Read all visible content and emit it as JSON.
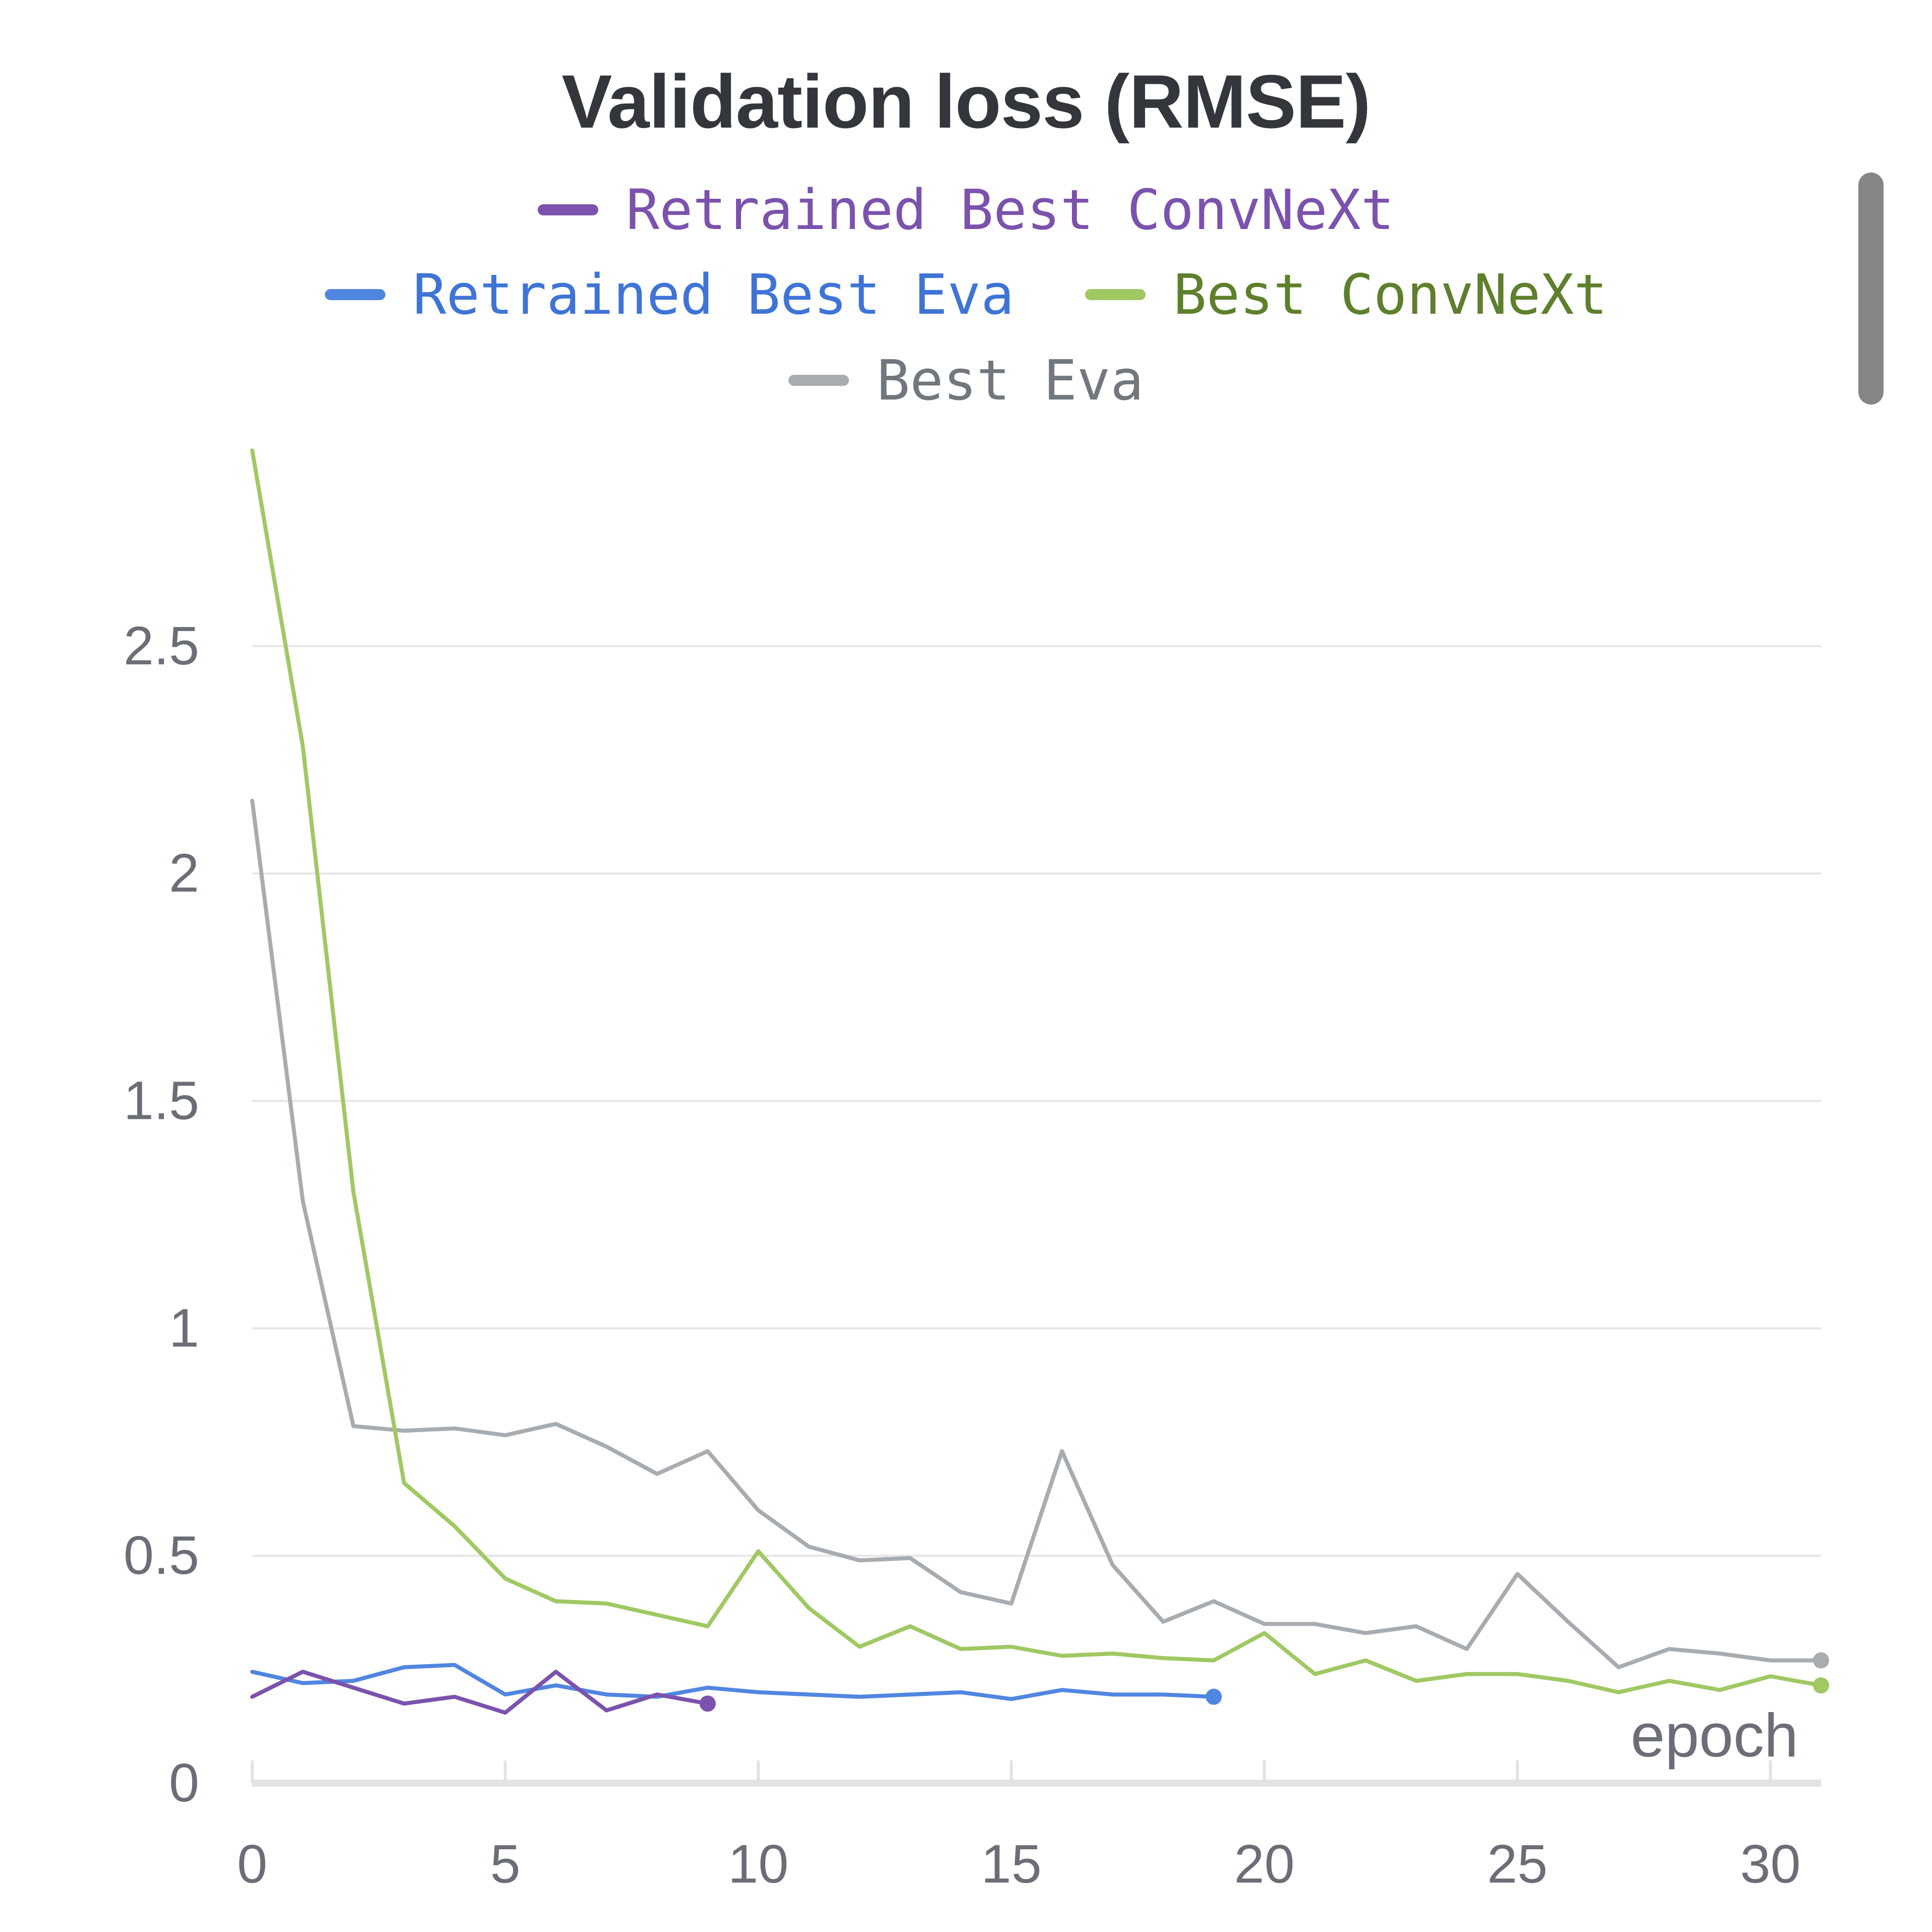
{
  "chart_data": {
    "type": "line",
    "title": "Validation loss (RMSE)",
    "xlabel": "epoch",
    "ylabel": "",
    "xlim": [
      0,
      31
    ],
    "ylim": [
      0,
      3.0
    ],
    "xticks": [
      0,
      5,
      10,
      15,
      20,
      25,
      30
    ],
    "yticks": [
      0,
      0.5,
      1,
      1.5,
      2,
      2.5
    ],
    "ytick_labels": [
      "0",
      "0.5",
      "1",
      "1.5",
      "2",
      "2.5"
    ],
    "grid": true,
    "legend_position": "top",
    "series": [
      {
        "name": "Retrained Best ConvNeXt",
        "color": "#7b52ad",
        "text_color": "#7b52ad",
        "x": [
          0,
          1,
          2,
          3,
          4,
          5,
          6,
          7,
          8,
          9
        ],
        "y": [
          0.19,
          0.245,
          0.21,
          0.175,
          0.19,
          0.155,
          0.245,
          0.16,
          0.195,
          0.175
        ]
      },
      {
        "name": "Retrained Best Eva",
        "color": "#5086e0",
        "text_color": "#3f74d6",
        "x": [
          0,
          1,
          2,
          3,
          4,
          5,
          6,
          7,
          8,
          9,
          10,
          11,
          12,
          13,
          14,
          15,
          16,
          17,
          18,
          19
        ],
        "y": [
          0.245,
          0.22,
          0.225,
          0.255,
          0.26,
          0.195,
          0.215,
          0.195,
          0.19,
          0.21,
          0.2,
          0.195,
          0.19,
          0.195,
          0.2,
          0.185,
          0.205,
          0.195,
          0.195,
          0.19
        ]
      },
      {
        "name": "Best ConvNeXt",
        "color": "#a0c863",
        "text_color": "#5e7f2c",
        "x": [
          0,
          1,
          2,
          3,
          4,
          5,
          6,
          7,
          8,
          9,
          10,
          11,
          12,
          13,
          14,
          15,
          16,
          17,
          18,
          19,
          20,
          21,
          22,
          23,
          24,
          25,
          26,
          27,
          28,
          29,
          30,
          31
        ],
        "y": [
          2.93,
          2.28,
          1.3,
          0.66,
          0.565,
          0.45,
          0.4,
          0.395,
          0.37,
          0.345,
          0.51,
          0.385,
          0.3,
          0.345,
          0.295,
          0.3,
          0.28,
          0.285,
          0.275,
          0.27,
          0.33,
          0.24,
          0.27,
          0.225,
          0.24,
          0.24,
          0.225,
          0.2,
          0.225,
          0.205,
          0.235,
          0.215
        ]
      },
      {
        "name": "Best Eva",
        "color": "#a7acb1",
        "text_color": "#72777e",
        "x": [
          0,
          1,
          2,
          3,
          4,
          5,
          6,
          7,
          8,
          9,
          10,
          11,
          12,
          13,
          14,
          15,
          16,
          17,
          18,
          19,
          20,
          21,
          22,
          23,
          24,
          25,
          26,
          27,
          28,
          29,
          30,
          31
        ],
        "y": [
          2.16,
          1.28,
          0.785,
          0.775,
          0.78,
          0.765,
          0.79,
          0.74,
          0.68,
          0.73,
          0.6,
          0.52,
          0.49,
          0.495,
          0.42,
          0.395,
          0.73,
          0.48,
          0.355,
          0.4,
          0.35,
          0.35,
          0.33,
          0.345,
          0.295,
          0.46,
          0.355,
          0.255,
          0.295,
          0.285,
          0.27,
          0.27
        ]
      }
    ]
  }
}
